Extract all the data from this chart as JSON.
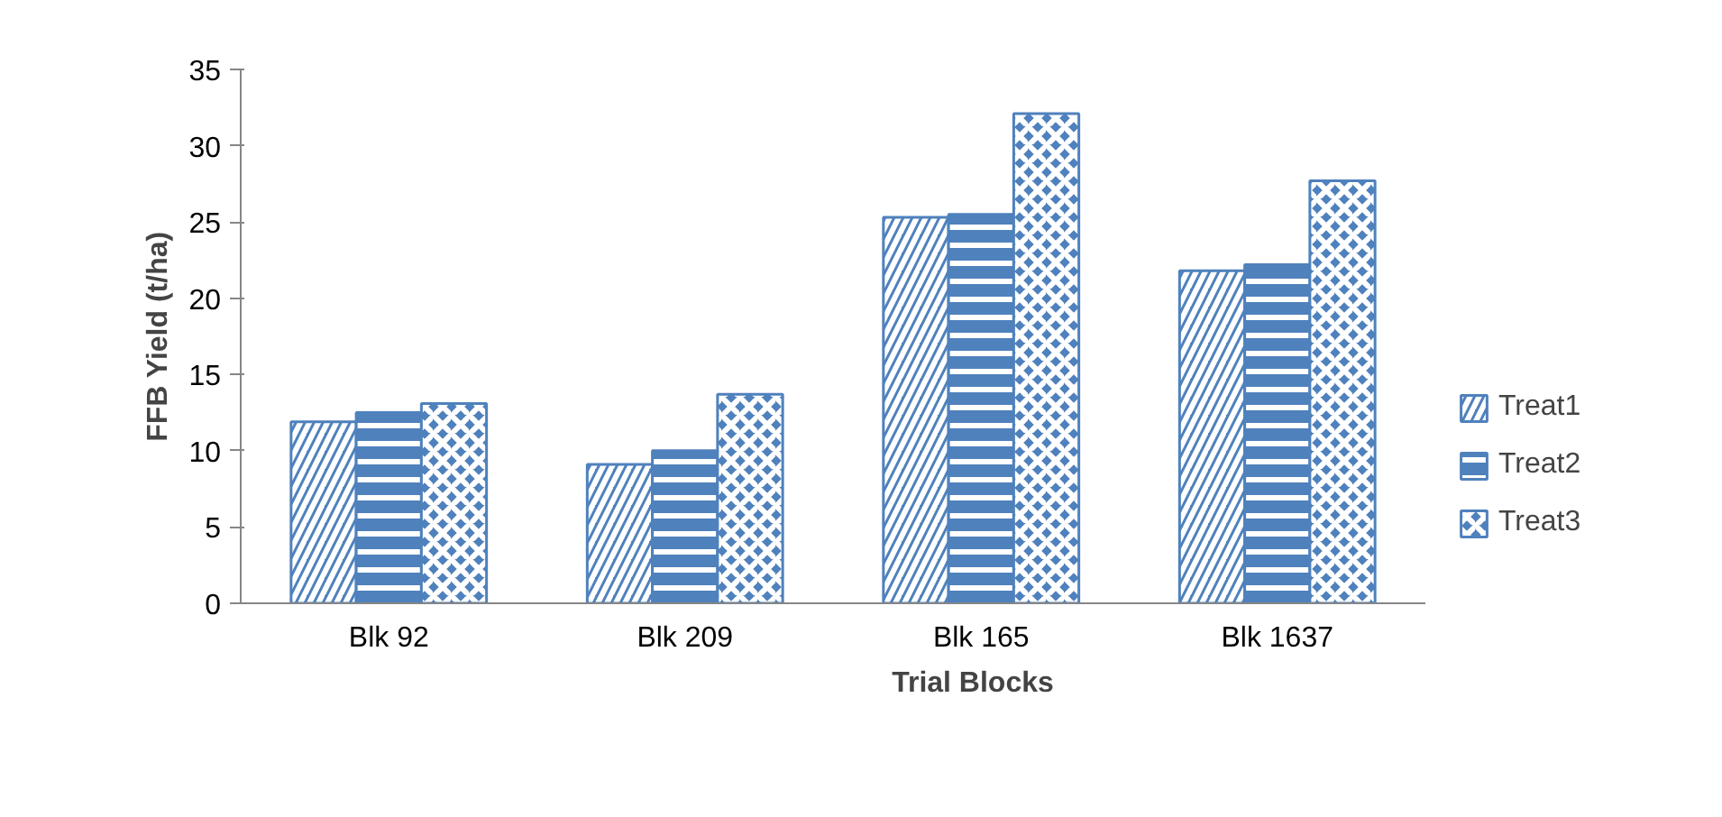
{
  "chart_data": {
    "type": "bar",
    "xlabel": "Trial Blocks",
    "ylabel": "FFB Yield (t/ha)",
    "categories": [
      "Blk 92",
      "Blk 209",
      "Blk 165",
      "Blk 1637"
    ],
    "series": [
      {
        "name": "Treat1",
        "color": "#4f81bd",
        "values": [
          11.9,
          9.1,
          25.3,
          21.8
        ]
      },
      {
        "name": "Treat2",
        "color": "#4f81bd",
        "values": [
          12.5,
          10.0,
          25.5,
          22.2
        ]
      },
      {
        "name": "Treat3",
        "color": "#4f81bd",
        "values": [
          13.1,
          13.7,
          32.1,
          27.7
        ]
      }
    ],
    "ylim": [
      0,
      35
    ],
    "yticks": [
      0,
      5,
      10,
      15,
      20,
      25,
      30,
      35
    ],
    "grid": false,
    "legend": "right"
  }
}
